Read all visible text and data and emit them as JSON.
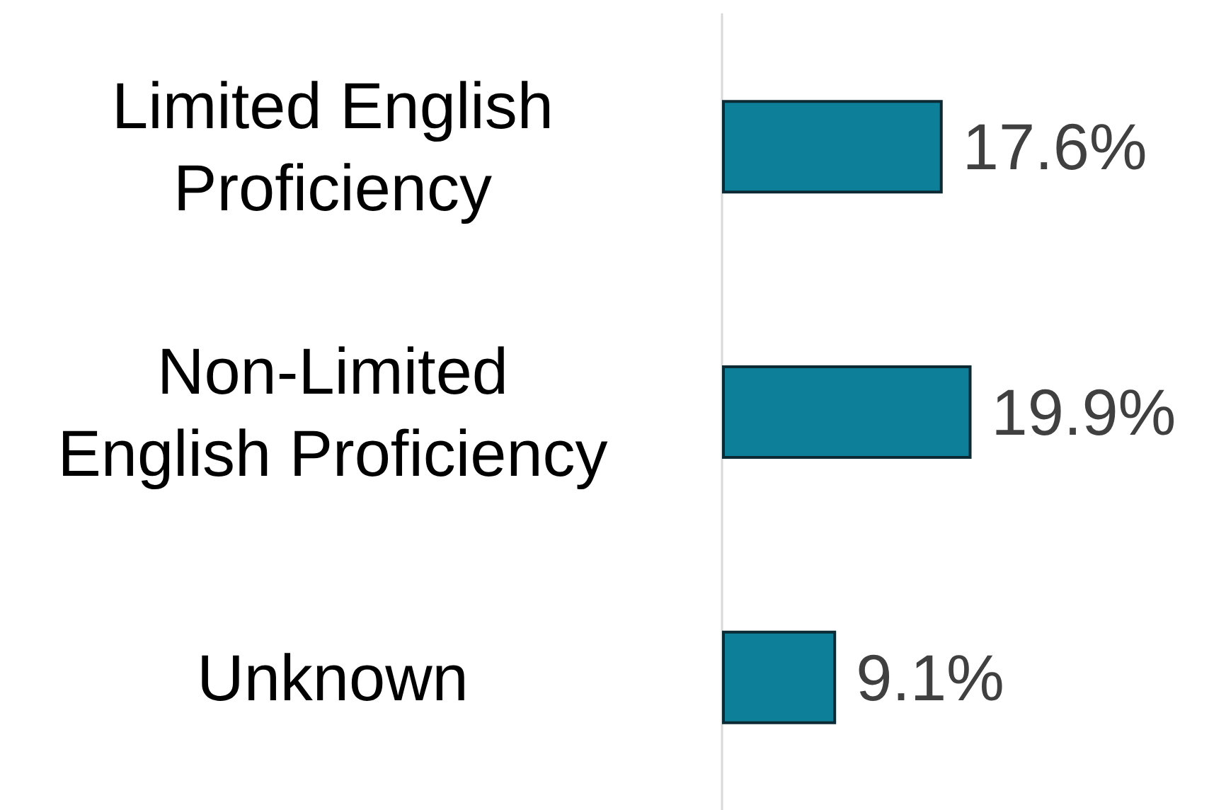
{
  "chart_data": {
    "type": "bar",
    "orientation": "horizontal",
    "categories": [
      "Limited English\nProficiency",
      "Non-Limited\nEnglish Proficiency",
      "Unknown"
    ],
    "values": [
      17.6,
      19.9,
      9.1
    ],
    "color": "#0e7f99",
    "value_labels": [
      "17.6%",
      "19.9%",
      "9.1%"
    ]
  }
}
